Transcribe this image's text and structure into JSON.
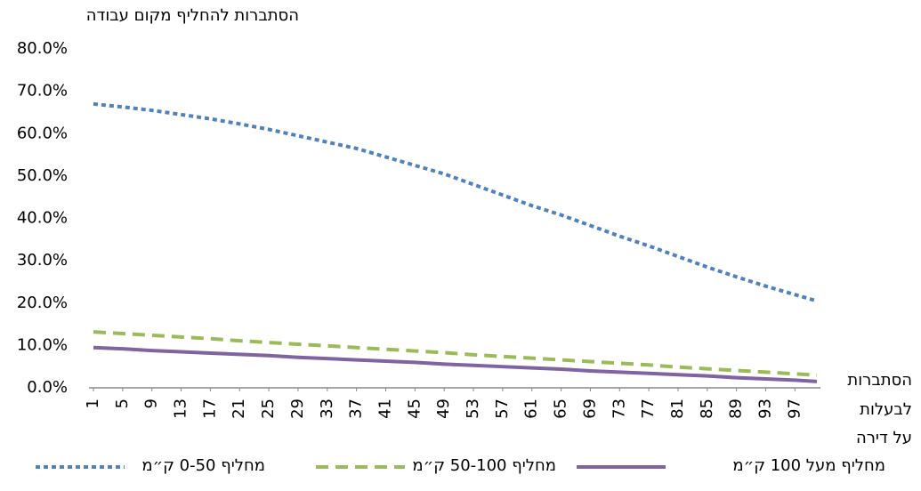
{
  "chart_data": {
    "type": "line",
    "ylabel": "הסתברות להחליף מקום עבודה",
    "xlabel": [
      "הסתברות",
      "לבעלות",
      "על דירה"
    ],
    "x": [
      1,
      5,
      9,
      13,
      17,
      21,
      25,
      29,
      33,
      37,
      41,
      45,
      49,
      53,
      57,
      61,
      65,
      69,
      73,
      77,
      81,
      85,
      89,
      93,
      97,
      100
    ],
    "xlim": [
      1,
      100
    ],
    "xticks": [
      1,
      5,
      9,
      13,
      17,
      21,
      25,
      29,
      33,
      37,
      41,
      45,
      49,
      53,
      57,
      61,
      65,
      69,
      73,
      77,
      81,
      85,
      89,
      93,
      97
    ],
    "ylim": [
      0,
      80
    ],
    "yticks": [
      {
        "value": 0,
        "label": "0.0%"
      },
      {
        "value": 10,
        "label": "10.0%"
      },
      {
        "value": 20,
        "label": "20.0%"
      },
      {
        "value": 30,
        "label": "30.0%"
      },
      {
        "value": 40,
        "label": "40.0%"
      },
      {
        "value": 50,
        "label": "50.0%"
      },
      {
        "value": 60,
        "label": "60.0%"
      },
      {
        "value": 70,
        "label": "70.0%"
      },
      {
        "value": 80,
        "label": "80.0%"
      }
    ],
    "grid": false,
    "legend": "bottom",
    "series": [
      {
        "name": "מחליף 0-50 ק״מ",
        "color": "#4f81bd",
        "dash": "dotted",
        "values": [
          67,
          66.3,
          65.5,
          64.5,
          63.5,
          62.3,
          61,
          59.5,
          58,
          56.5,
          54.5,
          52.5,
          50.5,
          48,
          45.5,
          43,
          40.8,
          38.3,
          35.8,
          33.5,
          31,
          28.5,
          26.2,
          24,
          22,
          20.5
        ]
      },
      {
        "name": "מחליף 50-100 ק״מ",
        "color": "#9bbb59",
        "dash": "dashed",
        "values": [
          13.2,
          12.8,
          12.4,
          12,
          11.6,
          11.1,
          10.7,
          10.3,
          9.9,
          9.5,
          9.1,
          8.7,
          8.3,
          7.8,
          7.4,
          7,
          6.6,
          6.2,
          5.8,
          5.4,
          4.9,
          4.5,
          4.1,
          3.7,
          3.3,
          3
        ]
      },
      {
        "name": "מחליף מעל 100 ק״מ",
        "color": "#8064a2",
        "dash": "solid",
        "values": [
          9.5,
          9.2,
          8.8,
          8.5,
          8.2,
          7.9,
          7.6,
          7.2,
          6.9,
          6.6,
          6.3,
          6,
          5.6,
          5.3,
          5,
          4.7,
          4.4,
          4,
          3.7,
          3.4,
          3.1,
          2.8,
          2.4,
          2.1,
          1.8,
          1.5
        ]
      }
    ]
  }
}
